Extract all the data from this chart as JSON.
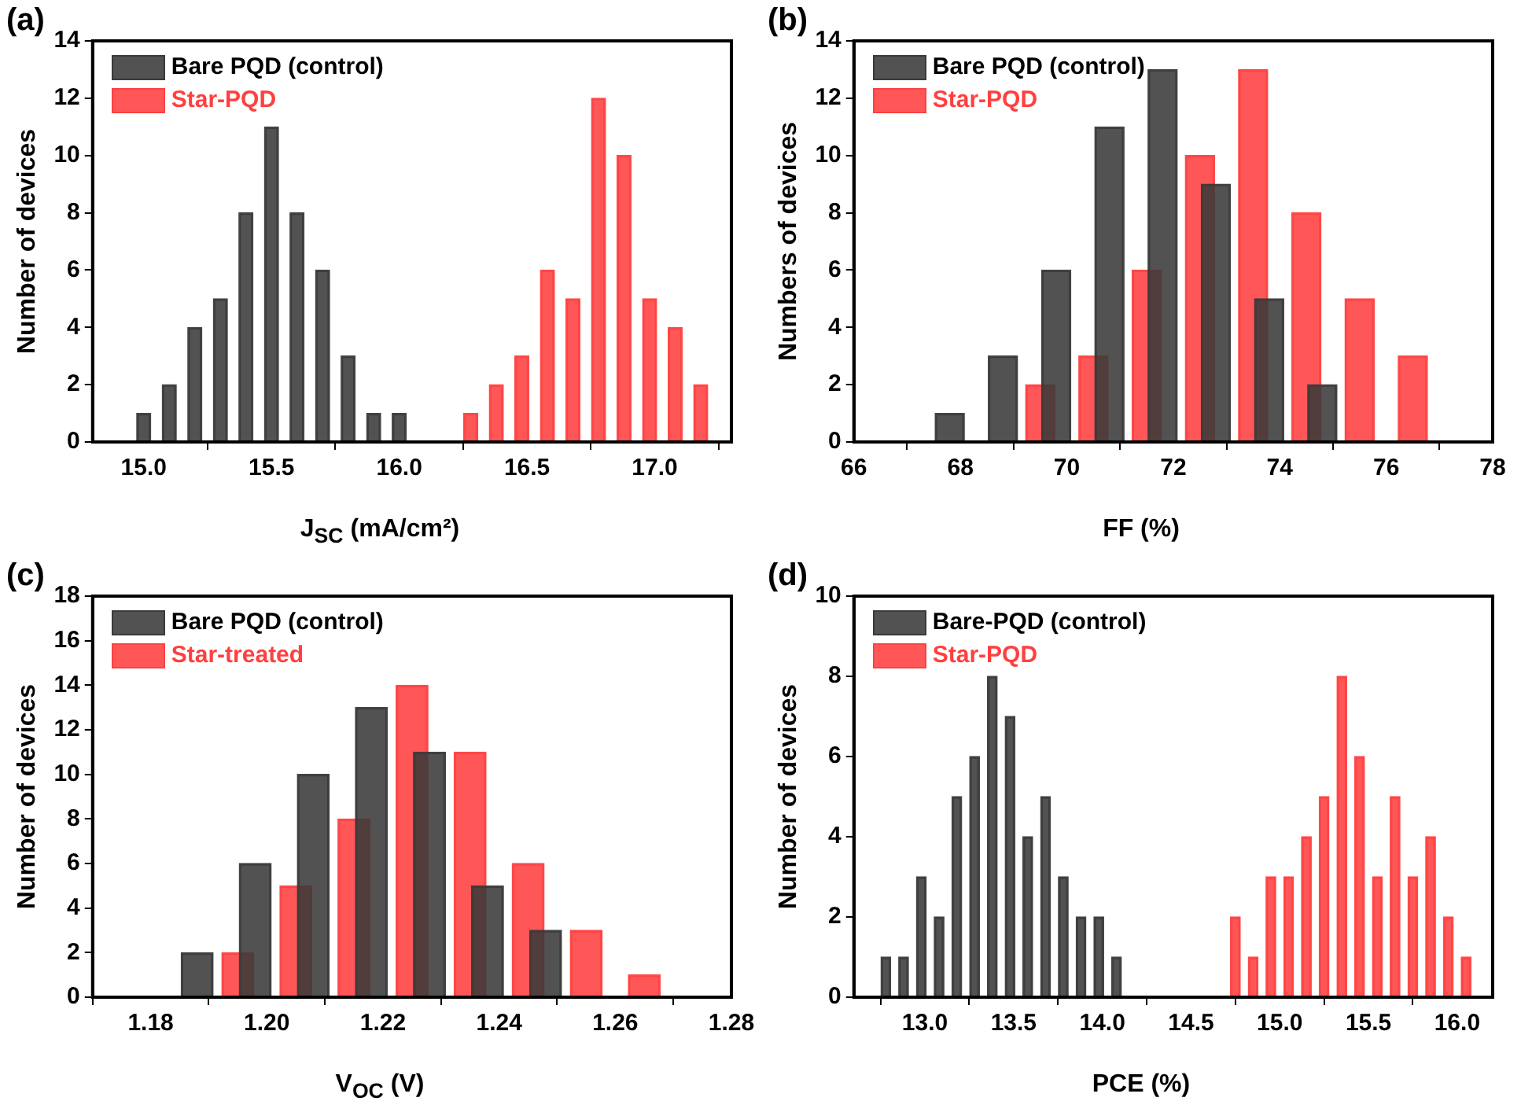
{
  "chart_data": [
    {
      "type": "bar",
      "title": "(a)",
      "xlabel": "J$_{SC}$ (mA/cm²)",
      "ylabel": "Number of devices",
      "legend": "top left",
      "xlim": [
        14.8,
        17.3
      ],
      "xticks": [
        {
          "value": 15,
          "label": "15.0"
        },
        {
          "value": 15.5,
          "label": "15.5"
        },
        {
          "value": 16,
          "label": "16.0"
        },
        {
          "value": 16.5,
          "label": "16.5"
        },
        {
          "value": 17,
          "label": "17.0"
        }
      ],
      "ylim": [
        0,
        14
      ],
      "yticks": [
        0,
        2,
        4,
        6,
        8,
        10,
        12,
        14
      ],
      "series": [
        {
          "name": "Bare PQD (control)",
          "color": "#3a3a3a",
          "x": [
            15.0,
            15.1,
            15.2,
            15.3,
            15.4,
            15.5,
            15.6,
            15.7,
            15.8,
            15.9,
            16.0
          ],
          "values": [
            1,
            2,
            4,
            5,
            8,
            11,
            8,
            6,
            3,
            1,
            1
          ]
        },
        {
          "name": "Star-PQD",
          "color": "#ff4040",
          "x": [
            16.28,
            16.38,
            16.48,
            16.58,
            16.68,
            16.78,
            16.88,
            16.98,
            17.08,
            17.18
          ],
          "values": [
            1,
            2,
            3,
            6,
            5,
            12,
            10,
            5,
            4,
            2
          ]
        }
      ]
    },
    {
      "type": "bar",
      "title": "(b)",
      "xlabel": "FF (%)",
      "ylabel": "Numbers of devices",
      "legend": "top left",
      "xlim": [
        66,
        78
      ],
      "xticks": [
        66,
        68,
        70,
        72,
        74,
        76,
        78
      ],
      "ylim": [
        0,
        14
      ],
      "yticks": [
        0,
        2,
        4,
        6,
        8,
        10,
        12,
        14
      ],
      "series": [
        {
          "name": "Bare PQD (control)",
          "color": "#3a3a3a",
          "x": [
            67.8,
            68.8,
            69.8,
            70.8,
            71.8,
            72.8,
            73.8,
            74.8
          ],
          "values": [
            1,
            3,
            6,
            11,
            13,
            9,
            5,
            2
          ]
        },
        {
          "name": "Star-PQD",
          "color": "#ff4040",
          "x": [
            69.5,
            70.5,
            71.5,
            72.5,
            73.5,
            74.5,
            75.5,
            76.5
          ],
          "values": [
            2,
            3,
            6,
            10,
            13,
            8,
            5,
            3
          ]
        }
      ]
    },
    {
      "type": "bar",
      "title": "(c)",
      "xlabel": "V$_{OC}$ (V)",
      "ylabel": "Number of devices",
      "legend": "top left",
      "xlim": [
        1.17,
        1.28
      ],
      "xticks": [
        {
          "value": 1.18,
          "label": "1.18"
        },
        {
          "value": 1.2,
          "label": "1.20"
        },
        {
          "value": 1.22,
          "label": "1.22"
        },
        {
          "value": 1.24,
          "label": "1.24"
        },
        {
          "value": 1.26,
          "label": "1.26"
        },
        {
          "value": 1.28,
          "label": "1.28"
        }
      ],
      "ylim": [
        0,
        18
      ],
      "yticks": [
        0,
        2,
        4,
        6,
        8,
        10,
        12,
        14,
        16,
        18
      ],
      "series": [
        {
          "name": "Bare PQD (control)",
          "color": "#3a3a3a",
          "x": [
            1.188,
            1.198,
            1.208,
            1.218,
            1.228,
            1.238,
            1.248
          ],
          "values": [
            2,
            6,
            10,
            13,
            11,
            5,
            3
          ]
        },
        {
          "name": "Star-treated",
          "color": "#ff4040",
          "x": [
            1.195,
            1.205,
            1.215,
            1.225,
            1.235,
            1.245,
            1.255,
            1.265
          ],
          "values": [
            2,
            5,
            8,
            14,
            11,
            6,
            3,
            1
          ]
        }
      ]
    },
    {
      "type": "bar",
      "title": "(d)",
      "xlabel": "PCE (%)",
      "ylabel": "Number of devices",
      "legend": "top left",
      "xlim": [
        12.6,
        16.2
      ],
      "xticks": [
        {
          "value": 13,
          "label": "13.0"
        },
        {
          "value": 13.5,
          "label": "13.5"
        },
        {
          "value": 14,
          "label": "14.0"
        },
        {
          "value": 14.5,
          "label": "14.5"
        },
        {
          "value": 15,
          "label": "15.0"
        },
        {
          "value": 15.5,
          "label": "15.5"
        },
        {
          "value": 16,
          "label": "16.0"
        }
      ],
      "ylim": [
        0,
        10
      ],
      "yticks": [
        0,
        2,
        4,
        6,
        8,
        10
      ],
      "series": [
        {
          "name": "Bare-PQD (control)",
          "color": "#3a3a3a",
          "x": [
            12.78,
            12.88,
            12.98,
            13.08,
            13.18,
            13.28,
            13.38,
            13.48,
            13.58,
            13.68,
            13.78,
            13.88,
            13.98,
            14.08
          ],
          "values": [
            1,
            1,
            3,
            2,
            5,
            6,
            8,
            7,
            4,
            5,
            3,
            2,
            2,
            1
          ]
        },
        {
          "name": "Star-PQD",
          "color": "#ff4040",
          "x": [
            14.75,
            14.85,
            14.95,
            15.05,
            15.15,
            15.25,
            15.35,
            15.45,
            15.55,
            15.65,
            15.75,
            15.85,
            15.95,
            16.05
          ],
          "values": [
            2,
            1,
            3,
            3,
            4,
            5,
            8,
            6,
            3,
            5,
            3,
            4,
            2,
            1
          ]
        }
      ]
    }
  ]
}
